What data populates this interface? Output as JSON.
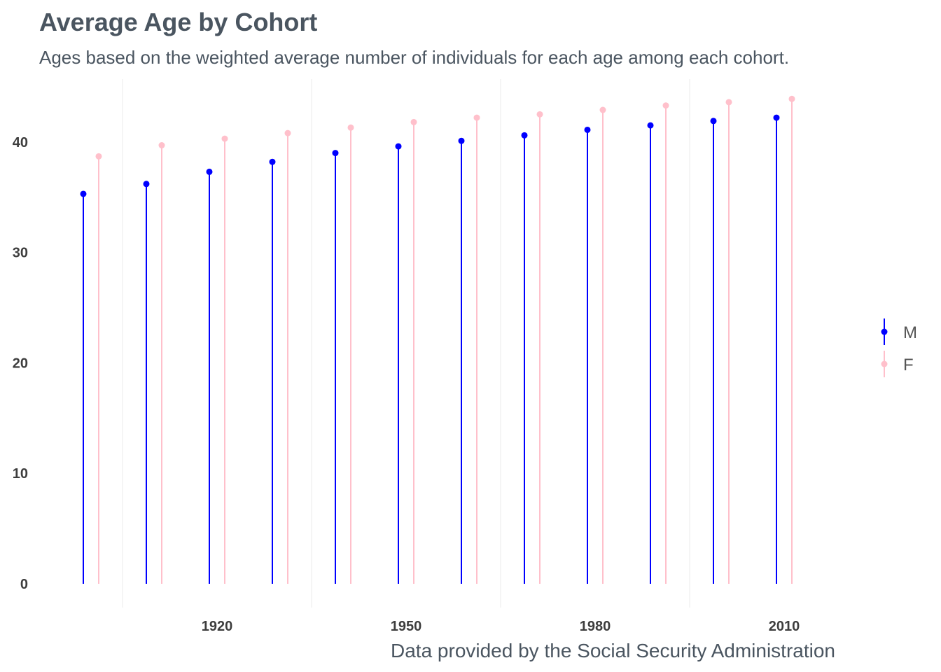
{
  "chart_data": {
    "type": "lollipop",
    "title": "Average Age by Cohort",
    "subtitle": "Ages based on the weighted average number of individuals for each age among each cohort.",
    "caption": "Data provided by the Social Security Administration",
    "xlabel": "",
    "ylabel": "",
    "x_ticks": [
      1920,
      1950,
      1980,
      2010
    ],
    "y_ticks": [
      0,
      10,
      20,
      30,
      40
    ],
    "xlim": [
      1893.5,
      2024
    ],
    "ylim": [
      0,
      44
    ],
    "grid": "vertical-minor",
    "legend_position": "right",
    "cohorts": [
      1900,
      1910,
      1920,
      1930,
      1940,
      1950,
      1960,
      1970,
      1980,
      1990,
      2000,
      2010
    ],
    "series": [
      {
        "name": "M",
        "color": "#0000ff",
        "values": [
          35.3,
          36.2,
          37.3,
          38.2,
          39.0,
          39.6,
          40.1,
          40.6,
          41.1,
          41.5,
          41.9,
          42.2
        ]
      },
      {
        "name": "F",
        "color": "#ffc0cb",
        "values": [
          38.7,
          39.7,
          40.3,
          40.8,
          41.3,
          41.8,
          42.2,
          42.5,
          42.9,
          43.3,
          43.6,
          43.9
        ]
      }
    ]
  }
}
